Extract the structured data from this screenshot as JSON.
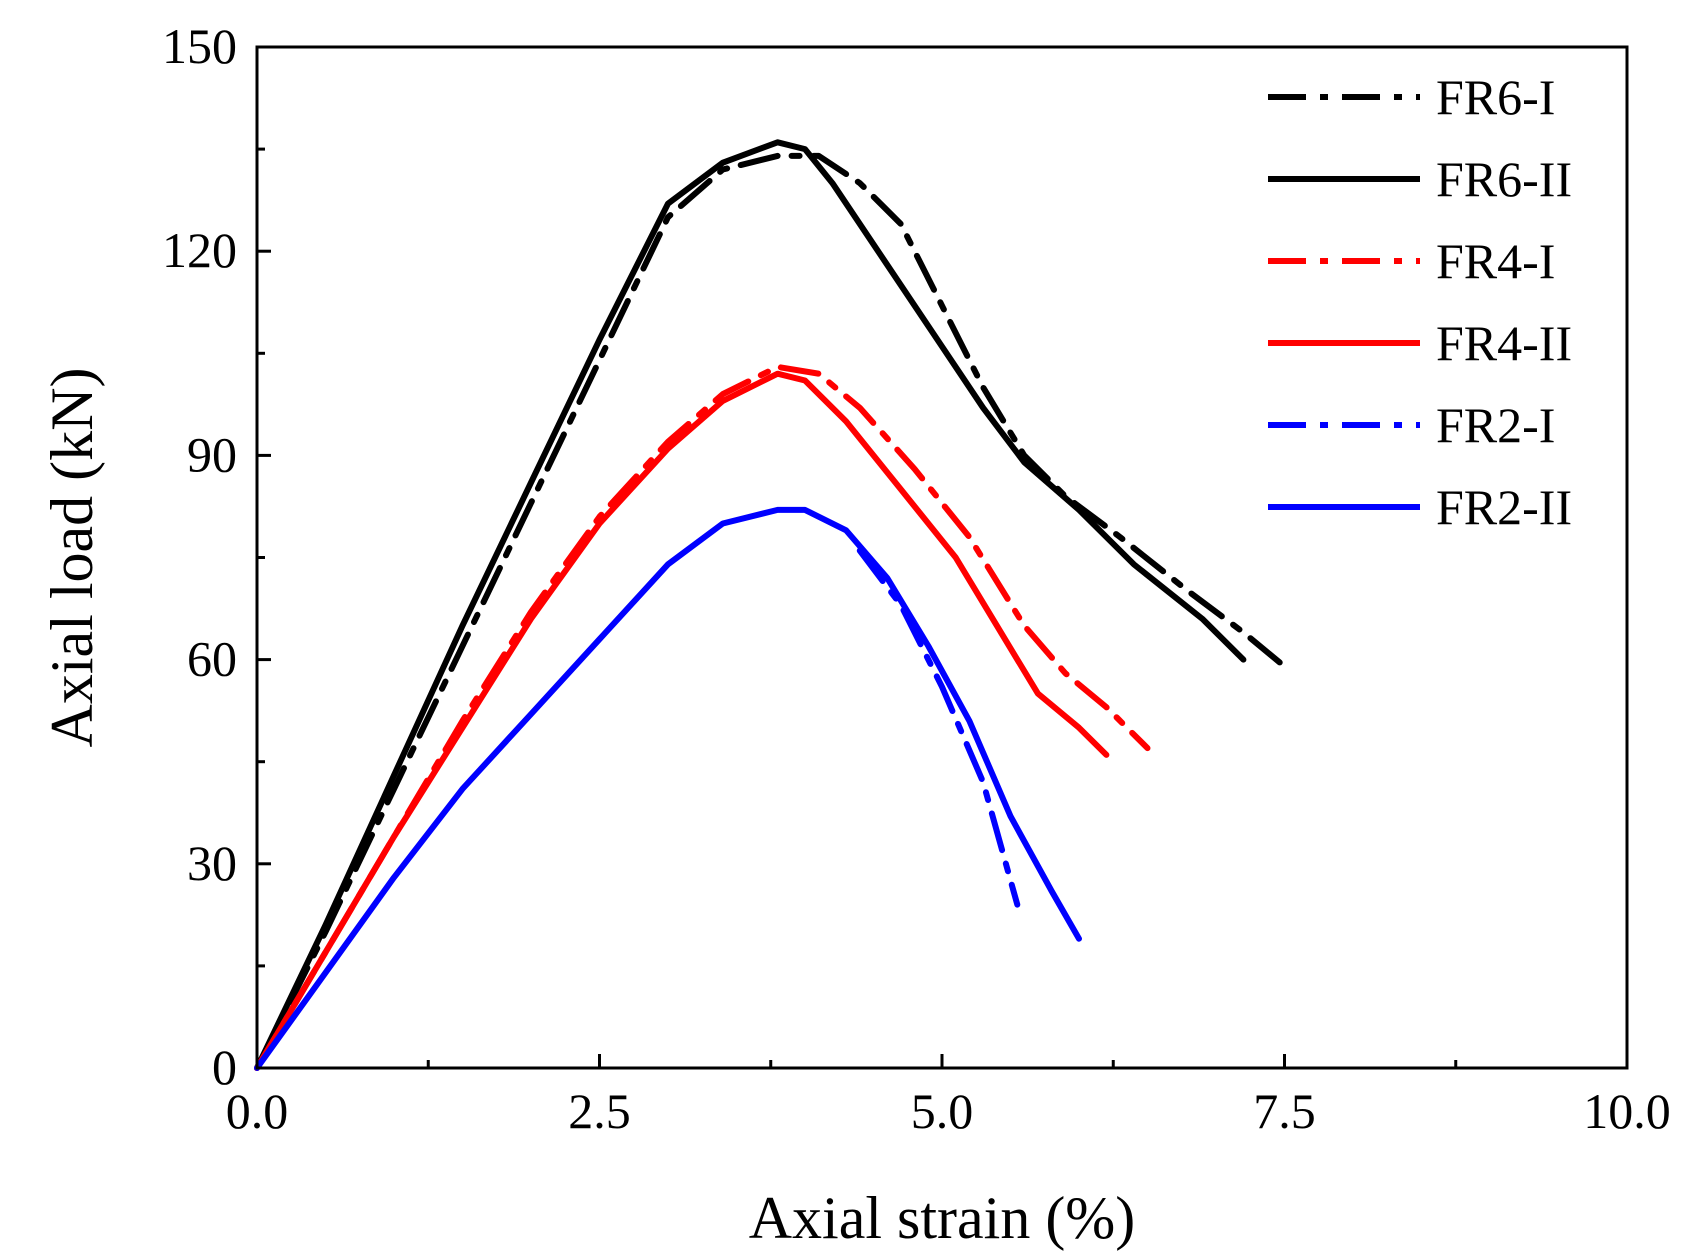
{
  "chart_data": {
    "type": "line",
    "title": "",
    "xlabel": "Axial strain (%)",
    "ylabel": "Axial load (kN)",
    "xlim": [
      0,
      10
    ],
    "ylim": [
      0,
      150
    ],
    "x_ticks": [
      0,
      2.5,
      5,
      7.5,
      10
    ],
    "x_tick_labels": [
      "0.0",
      "2.5",
      "5.0",
      "7.5",
      "10.0"
    ],
    "y_ticks": [
      0,
      30,
      60,
      90,
      120,
      150
    ],
    "y_tick_labels": [
      "0",
      "30",
      "60",
      "90",
      "120",
      "150"
    ],
    "grid": false,
    "legend_position": "top-right",
    "series": [
      {
        "name": "FR6-I",
        "color": "#000000",
        "style": "dashdot",
        "points": [
          [
            0,
            0
          ],
          [
            0.5,
            20
          ],
          [
            1.0,
            41
          ],
          [
            1.5,
            62
          ],
          [
            2.0,
            83
          ],
          [
            2.5,
            104
          ],
          [
            3.0,
            125
          ],
          [
            3.4,
            132
          ],
          [
            3.8,
            134
          ],
          [
            4.1,
            134
          ],
          [
            4.4,
            130
          ],
          [
            4.7,
            124
          ],
          [
            5.0,
            112
          ],
          [
            5.3,
            100
          ],
          [
            5.6,
            90
          ],
          [
            5.9,
            84
          ],
          [
            6.3,
            78
          ],
          [
            6.8,
            70
          ],
          [
            7.2,
            64
          ],
          [
            7.5,
            59
          ]
        ]
      },
      {
        "name": "FR6-II",
        "color": "#000000",
        "style": "solid",
        "points": [
          [
            0,
            0
          ],
          [
            0.5,
            21
          ],
          [
            1.0,
            43
          ],
          [
            1.5,
            65
          ],
          [
            2.0,
            86
          ],
          [
            2.5,
            107
          ],
          [
            3.0,
            127
          ],
          [
            3.4,
            133
          ],
          [
            3.8,
            136
          ],
          [
            4.0,
            135
          ],
          [
            4.2,
            130
          ],
          [
            4.6,
            118
          ],
          [
            5.0,
            106
          ],
          [
            5.3,
            97
          ],
          [
            5.6,
            89
          ],
          [
            6.0,
            82
          ],
          [
            6.4,
            74
          ],
          [
            6.9,
            66
          ],
          [
            7.2,
            60
          ]
        ]
      },
      {
        "name": "FR4-I",
        "color": "#ff0000",
        "style": "dashdot",
        "points": [
          [
            0,
            0
          ],
          [
            0.5,
            17
          ],
          [
            1.0,
            34
          ],
          [
            1.5,
            51
          ],
          [
            2.0,
            67
          ],
          [
            2.5,
            81
          ],
          [
            3.0,
            92
          ],
          [
            3.4,
            99
          ],
          [
            3.8,
            103
          ],
          [
            4.1,
            102
          ],
          [
            4.4,
            97
          ],
          [
            4.8,
            88
          ],
          [
            5.2,
            78
          ],
          [
            5.6,
            65
          ],
          [
            5.9,
            58
          ],
          [
            6.2,
            53
          ],
          [
            6.5,
            47
          ]
        ]
      },
      {
        "name": "FR4-II",
        "color": "#ff0000",
        "style": "solid",
        "points": [
          [
            0,
            0
          ],
          [
            0.5,
            17
          ],
          [
            1.0,
            34
          ],
          [
            1.5,
            50
          ],
          [
            2.0,
            66
          ],
          [
            2.5,
            80
          ],
          [
            3.0,
            91
          ],
          [
            3.4,
            98
          ],
          [
            3.8,
            102
          ],
          [
            4.0,
            101
          ],
          [
            4.3,
            95
          ],
          [
            4.7,
            85
          ],
          [
            5.1,
            75
          ],
          [
            5.4,
            65
          ],
          [
            5.7,
            55
          ],
          [
            6.0,
            50
          ],
          [
            6.2,
            46
          ]
        ]
      },
      {
        "name": "FR2-I",
        "color": "#0000ff",
        "style": "dashdot",
        "points": [
          [
            4.4,
            76
          ],
          [
            4.7,
            68
          ],
          [
            5.0,
            56
          ],
          [
            5.3,
            42
          ],
          [
            5.55,
            24
          ]
        ]
      },
      {
        "name": "FR2-II",
        "color": "#0000ff",
        "style": "solid",
        "points": [
          [
            0,
            0
          ],
          [
            0.5,
            14
          ],
          [
            1.0,
            28
          ],
          [
            1.5,
            41
          ],
          [
            2.0,
            52
          ],
          [
            2.5,
            63
          ],
          [
            3.0,
            74
          ],
          [
            3.4,
            80
          ],
          [
            3.8,
            82
          ],
          [
            4.0,
            82
          ],
          [
            4.3,
            79
          ],
          [
            4.6,
            72
          ],
          [
            4.9,
            62
          ],
          [
            5.2,
            51
          ],
          [
            5.5,
            37
          ],
          [
            5.8,
            26
          ],
          [
            6.0,
            19
          ]
        ]
      }
    ]
  }
}
